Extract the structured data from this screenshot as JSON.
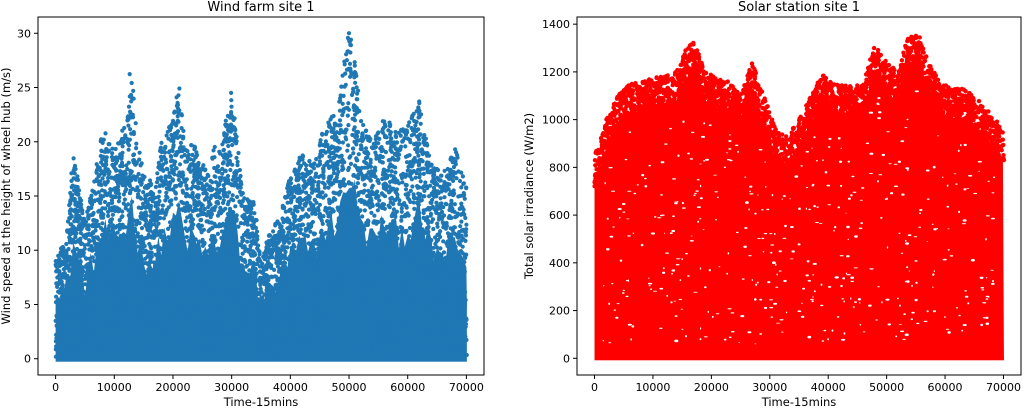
{
  "chart_data": [
    {
      "type": "scatter",
      "title": "Wind farm site 1",
      "xlabel": "Time-15mins",
      "ylabel": "Wind speed at the height of wheel hub (m/s)",
      "xlim": [
        -3000,
        73000
      ],
      "ylim": [
        -1.5,
        31.5
      ],
      "xticks": [
        "0",
        "10000",
        "20000",
        "30000",
        "40000",
        "50000",
        "60000",
        "70000"
      ],
      "yticks": [
        "0",
        "5",
        "10",
        "15",
        "20",
        "25",
        "30"
      ],
      "color": "#1f77b4",
      "grid": false,
      "series": [
        {
          "points_desc": "dense scatter of ~70000 points",
          "x_range": [
            0,
            70080
          ],
          "envelope": [
            [
              0,
              9
            ],
            [
              2000,
              12
            ],
            [
              3000,
              19.5
            ],
            [
              5000,
              12.5
            ],
            [
              7000,
              18
            ],
            [
              8000,
              21.5
            ],
            [
              10000,
              19
            ],
            [
              12000,
              22
            ],
            [
              12800,
              27.5
            ],
            [
              14000,
              20
            ],
            [
              15000,
              17
            ],
            [
              17000,
              16
            ],
            [
              18000,
              20
            ],
            [
              20000,
              22
            ],
            [
              21000,
              25.5
            ],
            [
              22000,
              20
            ],
            [
              24000,
              19.5
            ],
            [
              26000,
              17
            ],
            [
              27000,
              20
            ],
            [
              28000,
              19
            ],
            [
              30000,
              25
            ],
            [
              32000,
              15
            ],
            [
              34000,
              14.5
            ],
            [
              35000,
              8.5
            ],
            [
              36000,
              11
            ],
            [
              38000,
              13
            ],
            [
              40000,
              17
            ],
            [
              42000,
              19
            ],
            [
              44000,
              18
            ],
            [
              46000,
              22
            ],
            [
              48000,
              23
            ],
            [
              50000,
              30.3
            ],
            [
              51000,
              28
            ],
            [
              52000,
              22
            ],
            [
              54000,
              20
            ],
            [
              56000,
              22.5
            ],
            [
              58000,
              21
            ],
            [
              60000,
              21.5
            ],
            [
              62000,
              23.8
            ],
            [
              64000,
              18
            ],
            [
              66000,
              17
            ],
            [
              68000,
              19.5
            ],
            [
              70000,
              16
            ]
          ]
        }
      ]
    },
    {
      "type": "scatter",
      "title": "Solar station site 1",
      "xlabel": "Time-15mins",
      "ylabel": "Total solar irradiance (W/m2)",
      "xlim": [
        -3000,
        73000
      ],
      "ylim": [
        -70,
        1430
      ],
      "xticks": [
        "0",
        "10000",
        "20000",
        "30000",
        "40000",
        "50000",
        "60000",
        "70000"
      ],
      "yticks": [
        "0",
        "200",
        "400",
        "600",
        "800",
        "1000",
        "1200",
        "1400"
      ],
      "color": "#ff0000",
      "grid": false,
      "series": [
        {
          "points_desc": "dense scatter of ~70000 points",
          "x_range": [
            0,
            70080
          ],
          "envelope": [
            [
              0,
              850
            ],
            [
              2000,
              1000
            ],
            [
              4000,
              1100
            ],
            [
              6000,
              1150
            ],
            [
              8000,
              1160
            ],
            [
              10000,
              1180
            ],
            [
              12000,
              1180
            ],
            [
              14000,
              1200
            ],
            [
              15500,
              1290
            ],
            [
              17000,
              1330
            ],
            [
              19000,
              1200
            ],
            [
              21000,
              1180
            ],
            [
              23000,
              1160
            ],
            [
              25000,
              1100
            ],
            [
              27000,
              1240
            ],
            [
              29000,
              1100
            ],
            [
              31000,
              960
            ],
            [
              33000,
              930
            ],
            [
              35000,
              1000
            ],
            [
              37000,
              1100
            ],
            [
              39000,
              1190
            ],
            [
              41000,
              1150
            ],
            [
              44000,
              1140
            ],
            [
              46000,
              1150
            ],
            [
              48000,
              1320
            ],
            [
              50000,
              1240
            ],
            [
              52000,
              1200
            ],
            [
              53500,
              1340
            ],
            [
              55500,
              1360
            ],
            [
              57000,
              1250
            ],
            [
              59000,
              1160
            ],
            [
              61000,
              1130
            ],
            [
              63000,
              1130
            ],
            [
              65000,
              1100
            ],
            [
              67000,
              1050
            ],
            [
              70000,
              960
            ]
          ]
        }
      ]
    }
  ]
}
